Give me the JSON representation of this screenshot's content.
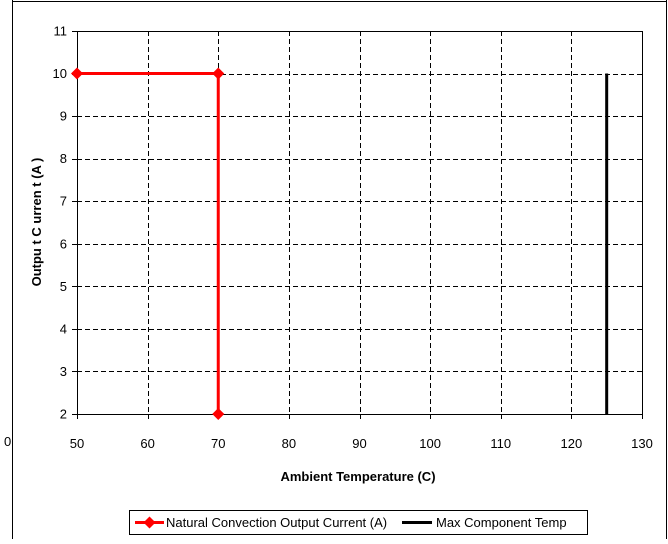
{
  "chart_data": {
    "type": "line",
    "title": "",
    "xlabel": "Ambient Temperature (C)",
    "ylabel": "Outpu t C urren t (A )",
    "xlim": [
      50,
      130
    ],
    "ylim": [
      2,
      11
    ],
    "x_ticks": [
      "50",
      "60",
      "70",
      "80",
      "90",
      "100",
      "110",
      "120",
      "130"
    ],
    "y_ticks": [
      "2",
      "3",
      "4",
      "5",
      "6",
      "7",
      "8",
      "9",
      "10",
      "11"
    ],
    "stray_tick_label": "0",
    "grid": "dashed",
    "legend_position": "bottom",
    "series": [
      {
        "name": "Natural Convection Output Current (A)",
        "color": "#ff0000",
        "marker": "diamond",
        "x": [
          50,
          70,
          70
        ],
        "y": [
          10,
          10,
          2
        ]
      },
      {
        "name": "Max Component Temp",
        "color": "#000000",
        "marker": "none",
        "x": [
          125,
          125
        ],
        "y": [
          10,
          2
        ]
      }
    ]
  }
}
